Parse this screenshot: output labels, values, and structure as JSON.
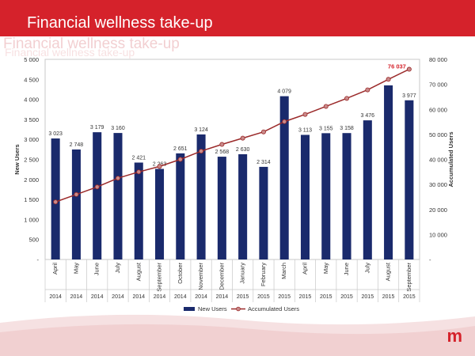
{
  "slide": {
    "title": "Financial wellness take-up",
    "logo_text": "m",
    "brand_color": "#d5222b"
  },
  "chart_data": {
    "type": "bar",
    "categories": [
      "April",
      "May",
      "June",
      "July",
      "August",
      "September",
      "October",
      "November",
      "December",
      "January",
      "February",
      "March",
      "April",
      "May",
      "June",
      "July",
      "August",
      "September"
    ],
    "years": [
      "2014",
      "2014",
      "2014",
      "2014",
      "2014",
      "2014",
      "2014",
      "2014",
      "2014",
      "2015",
      "2015",
      "2015",
      "2015",
      "2015",
      "2015",
      "2015",
      "2015",
      "2015"
    ],
    "series": [
      {
        "name": "New Users",
        "type": "bar",
        "axis": "left",
        "color": "#1a2a6c",
        "values": [
          3023,
          2748,
          3179,
          3160,
          2421,
          2263,
          2651,
          3124,
          2568,
          2630,
          2314,
          4079,
          3113,
          3155,
          3158,
          3476,
          4350,
          3977
        ]
      },
      {
        "name": "Accumulated Users",
        "type": "line",
        "axis": "right",
        "color": "#9b2a2a",
        "values": [
          23000,
          26000,
          29000,
          32500,
          35000,
          37200,
          40000,
          43300,
          46000,
          48500,
          51000,
          55100,
          58000,
          61200,
          64400,
          67800,
          72000,
          76037
        ]
      }
    ],
    "bar_labels": [
      "3 023",
      "2 748",
      "3 179",
      "3 160",
      "2 421",
      "2 263",
      "2 651",
      "3 124",
      "2 568",
      "2 630",
      "2 314",
      "4 079",
      "3 113",
      "3 155",
      "3 158",
      "3 476",
      "",
      "3 977"
    ],
    "line_label_last": "76 037",
    "ylabel_left": "New Users",
    "ylabel_right": "Accumulated Users",
    "yticks_left": [
      "5 000",
      "4 500",
      "4 000",
      "3 500",
      "3 000",
      "2 500",
      "2 000",
      "1 500",
      "1 000",
      "500",
      "-"
    ],
    "yticks_right": [
      "80 000",
      "70 000",
      "60 000",
      "50 000",
      "40 000",
      "30 000",
      "20 000",
      "10 000",
      "-"
    ],
    "ylim_left": [
      0,
      5000
    ],
    "ylim_right": [
      0,
      80000
    ],
    "grid": false,
    "legend": {
      "position": "bottom",
      "items": [
        "New Users",
        "Accumulated Users"
      ]
    }
  }
}
